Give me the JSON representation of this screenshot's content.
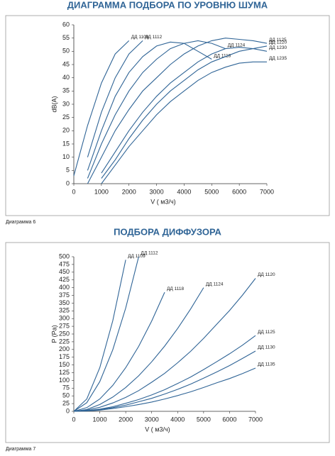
{
  "chart_data": [
    {
      "type": "line",
      "title": "ДИАГРАММА ПОДБОРА ПО УРОВНЮ ШУМА",
      "caption": "Диаграмма 6",
      "xlabel": "V ( м3/ч)",
      "ylabel": "dB(A)",
      "x": [
        0,
        500,
        1000,
        1500,
        2000,
        2500,
        3000,
        3500,
        4000,
        4500,
        5000,
        5500,
        6000,
        6500,
        7000
      ],
      "xlim": [
        0,
        7000
      ],
      "xticks": [
        0,
        1000,
        2000,
        3000,
        4000,
        5000,
        6000,
        7000
      ],
      "ylim": [
        0,
        60
      ],
      "yticks": [
        0,
        5,
        10,
        15,
        20,
        25,
        30,
        35,
        40,
        45,
        50,
        55,
        60
      ],
      "grid": false,
      "series": [
        {
          "name": "ДД 1109",
          "color": "#2f6496",
          "values": [
            3,
            22,
            38,
            49,
            54,
            null,
            null,
            null,
            null,
            null,
            null,
            null,
            null,
            null,
            null
          ]
        },
        {
          "name": "ДД 1112",
          "color": "#2f6496",
          "values": [
            null,
            10,
            27,
            40,
            49,
            54,
            null,
            null,
            null,
            null,
            null,
            null,
            null,
            null,
            null
          ]
        },
        {
          "name": "ДД 1118",
          "color": "#2f6496",
          "values": [
            null,
            5,
            20,
            33,
            42,
            48,
            52,
            53.5,
            53,
            50,
            47,
            null,
            null,
            null,
            null
          ]
        },
        {
          "name": "ДД 1124",
          "color": "#2f6496",
          "values": [
            null,
            2,
            15,
            26,
            35,
            42,
            47,
            51,
            53,
            54,
            53,
            51,
            null,
            null,
            null
          ]
        },
        {
          "name": "ДД 1125",
          "color": "#2f6496",
          "values": [
            null,
            0,
            10,
            20,
            28,
            35,
            40,
            45,
            49,
            52,
            54,
            55,
            54.5,
            54,
            53
          ]
        },
        {
          "name": "ДД 1230",
          "color": "#2f6496",
          "values": [
            null,
            null,
            4,
            12,
            20,
            27,
            33,
            38,
            42,
            46,
            49,
            51,
            51.5,
            51,
            50
          ]
        },
        {
          "name": "ДД 1220",
          "color": "#2f6496",
          "values": [
            null,
            null,
            2,
            9,
            17,
            24,
            30,
            35,
            39,
            43,
            46,
            48,
            50,
            51,
            52
          ]
        },
        {
          "name": "ДД 1235",
          "color": "#2f6496",
          "values": [
            null,
            null,
            0,
            7,
            14,
            20,
            26,
            31,
            35,
            39,
            42,
            44,
            45.5,
            46,
            46
          ]
        }
      ]
    },
    {
      "type": "line",
      "title": "ПОДБОРА ДИФФУЗОРА",
      "caption": "Диаграмма 7",
      "xlabel": "V ( м3/ч)",
      "ylabel": "P (Pa)",
      "x": [
        0,
        500,
        1000,
        1500,
        2000,
        2500,
        3000,
        3500,
        4000,
        4500,
        5000,
        5500,
        6000,
        6500,
        7000
      ],
      "xlim": [
        0,
        7000
      ],
      "xticks": [
        0,
        1000,
        2000,
        3000,
        4000,
        5000,
        6000,
        7000
      ],
      "ylim": [
        0,
        500
      ],
      "yticks": [
        0,
        25,
        50,
        75,
        100,
        125,
        150,
        175,
        200,
        225,
        250,
        275,
        300,
        325,
        350,
        375,
        400,
        425,
        450,
        475,
        500
      ],
      "grid": false,
      "series": [
        {
          "name": "ДД 1109",
          "color": "#2f6496",
          "values": [
            0,
            40,
            141,
            293,
            490,
            null,
            null,
            null,
            null,
            null,
            null,
            null,
            null,
            null,
            null
          ]
        },
        {
          "name": "ДД 1112",
          "color": "#2f6496",
          "values": [
            0,
            28,
            96,
            199,
            334,
            500,
            null,
            null,
            null,
            null,
            null,
            null,
            null,
            null,
            null
          ]
        },
        {
          "name": "ДД 1118",
          "color": "#2f6496",
          "values": [
            0,
            12,
            40,
            84,
            141,
            210,
            292,
            385,
            null,
            null,
            null,
            null,
            null,
            null,
            null
          ]
        },
        {
          "name": "ДД 1124",
          "color": "#2f6496",
          "values": [
            0,
            6,
            22,
            46,
            77,
            115,
            160,
            211,
            268,
            331,
            400,
            null,
            null,
            null,
            null
          ]
        },
        {
          "name": "ДД 1120",
          "color": "#2f6496",
          "values": [
            0,
            4,
            13,
            27,
            45,
            67,
            94,
            123,
            157,
            194,
            236,
            281,
            326,
            376,
            430
          ]
        },
        {
          "name": "ДД 1125",
          "color": "#2f6496",
          "values": [
            0,
            2,
            7,
            15,
            26,
            38,
            53,
            70,
            90,
            111,
            135,
            160,
            186,
            214,
            245
          ]
        },
        {
          "name": "ДД 1130",
          "color": "#2f6496",
          "values": [
            0,
            2,
            6,
            12,
            20,
            31,
            42,
            56,
            71,
            88,
            107,
            127,
            148,
            171,
            195
          ]
        },
        {
          "name": "ДД 1135",
          "color": "#2f6496",
          "values": [
            0,
            1,
            4,
            9,
            15,
            22,
            30,
            40,
            51,
            63,
            77,
            92,
            106,
            122,
            140
          ]
        }
      ]
    }
  ]
}
